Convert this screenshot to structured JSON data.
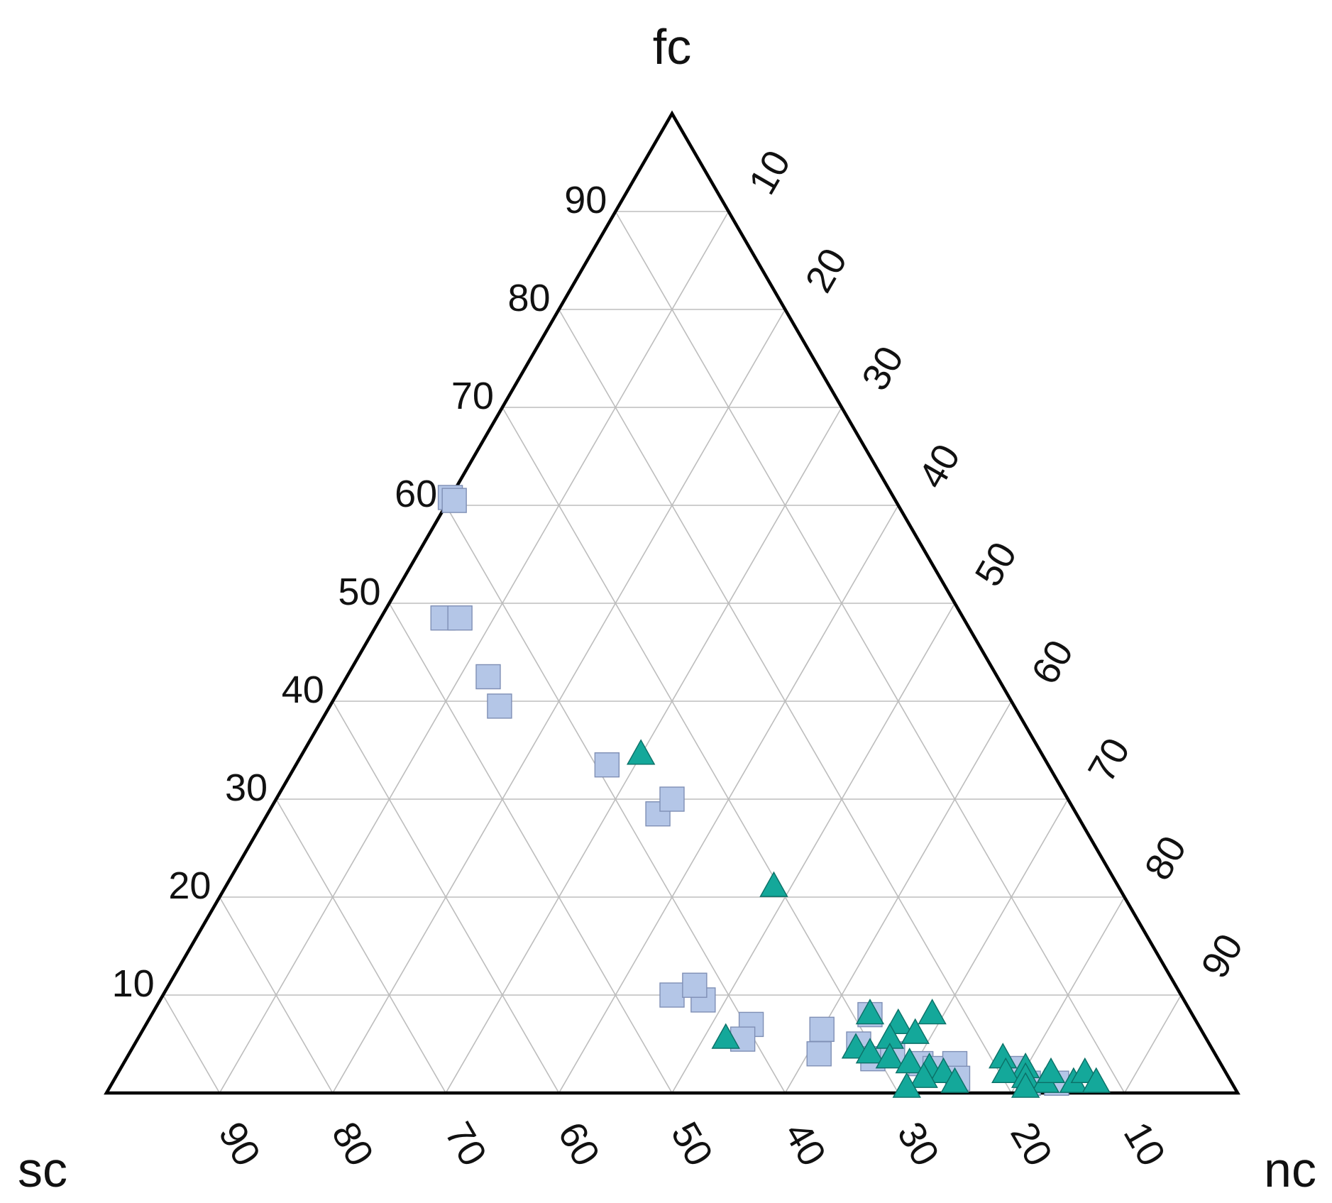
{
  "chart_data": {
    "type": "scatter",
    "subtype": "ternary",
    "title": "",
    "axes": {
      "top": {
        "label": "fc",
        "ticks": [
          "10",
          "20",
          "30",
          "40",
          "50",
          "60",
          "70",
          "80",
          "90"
        ]
      },
      "left": {
        "label": "sc",
        "ticks": [
          "10",
          "20",
          "30",
          "40",
          "50",
          "60",
          "70",
          "80",
          "90"
        ]
      },
      "right": {
        "label": "nc",
        "ticks": [
          "10",
          "20",
          "30",
          "40",
          "50",
          "60",
          "70",
          "80",
          "90"
        ]
      }
    },
    "range": [
      0,
      100
    ],
    "grid": true,
    "grid_step": 10,
    "legend": "none",
    "colors": {
      "squares": "#b4c6e7",
      "square_edge": "#7f8fb5",
      "triangles": "#14a89a",
      "triangle_edge": "#0b6f66",
      "grid": "#bdbdbd",
      "frame": "#000000"
    },
    "series": [
      {
        "marker": "square",
        "color": "#b4c6e7",
        "points": [
          {
            "fc": 60.8,
            "sc": 39.2,
            "nc": 0.0
          },
          {
            "fc": 60.5,
            "sc": 39.0,
            "nc": 0.5
          },
          {
            "fc": 48.5,
            "sc": 46.0,
            "nc": 5.5
          },
          {
            "fc": 48.5,
            "sc": 44.5,
            "nc": 7.0
          },
          {
            "fc": 42.5,
            "sc": 45.0,
            "nc": 12.5
          },
          {
            "fc": 39.5,
            "sc": 45.5,
            "nc": 15.0
          },
          {
            "fc": 33.5,
            "sc": 39.0,
            "nc": 27.5
          },
          {
            "fc": 28.5,
            "sc": 37.0,
            "nc": 34.5
          },
          {
            "fc": 30.0,
            "sc": 35.0,
            "nc": 35.0
          },
          {
            "fc": 10.0,
            "sc": 45.0,
            "nc": 45.0
          },
          {
            "fc": 9.5,
            "sc": 42.5,
            "nc": 48.0
          },
          {
            "fc": 11.0,
            "sc": 42.5,
            "nc": 46.5
          },
          {
            "fc": 7.0,
            "sc": 39.5,
            "nc": 53.5
          },
          {
            "fc": 5.5,
            "sc": 41.0,
            "nc": 53.5
          },
          {
            "fc": 6.5,
            "sc": 33.5,
            "nc": 60.0
          },
          {
            "fc": 4.0,
            "sc": 35.0,
            "nc": 61.0
          },
          {
            "fc": 8.0,
            "sc": 28.5,
            "nc": 63.5
          },
          {
            "fc": 5.0,
            "sc": 31.0,
            "nc": 64.0
          },
          {
            "fc": 3.5,
            "sc": 30.5,
            "nc": 66.0
          },
          {
            "fc": 4.0,
            "sc": 28.5,
            "nc": 67.5
          },
          {
            "fc": 3.0,
            "sc": 26.5,
            "nc": 70.5
          },
          {
            "fc": 2.5,
            "sc": 25.5,
            "nc": 72.0
          },
          {
            "fc": 3.0,
            "sc": 23.5,
            "nc": 73.5
          },
          {
            "fc": 1.5,
            "sc": 24.0,
            "nc": 74.5
          },
          {
            "fc": 2.5,
            "sc": 18.5,
            "nc": 79.0
          },
          {
            "fc": 1.0,
            "sc": 18.0,
            "nc": 81.0
          },
          {
            "fc": 1.0,
            "sc": 15.5,
            "nc": 83.5
          }
        ]
      },
      {
        "marker": "triangle",
        "color": "#14a89a",
        "points": [
          {
            "fc": 34.5,
            "sc": 35.5,
            "nc": 30.0
          },
          {
            "fc": 21.0,
            "sc": 30.5,
            "nc": 48.5
          },
          {
            "fc": 5.5,
            "sc": 42.5,
            "nc": 52.0
          },
          {
            "fc": 8.0,
            "sc": 28.5,
            "nc": 63.5
          },
          {
            "fc": 8.0,
            "sc": 23.0,
            "nc": 69.0
          },
          {
            "fc": 7.0,
            "sc": 26.5,
            "nc": 66.5
          },
          {
            "fc": 6.0,
            "sc": 25.5,
            "nc": 68.5
          },
          {
            "fc": 5.5,
            "sc": 28.0,
            "nc": 66.5
          },
          {
            "fc": 4.5,
            "sc": 31.5,
            "nc": 64.0
          },
          {
            "fc": 4.0,
            "sc": 30.5,
            "nc": 65.5
          },
          {
            "fc": 3.5,
            "sc": 29.0,
            "nc": 67.5
          },
          {
            "fc": 3.0,
            "sc": 27.5,
            "nc": 69.5
          },
          {
            "fc": 2.5,
            "sc": 26.0,
            "nc": 71.5
          },
          {
            "fc": 2.0,
            "sc": 25.0,
            "nc": 73.0
          },
          {
            "fc": 1.5,
            "sc": 27.0,
            "nc": 71.5
          },
          {
            "fc": 1.0,
            "sc": 24.5,
            "nc": 74.5
          },
          {
            "fc": 0.5,
            "sc": 29.0,
            "nc": 70.5
          },
          {
            "fc": 3.5,
            "sc": 19.0,
            "nc": 77.5
          },
          {
            "fc": 2.5,
            "sc": 17.5,
            "nc": 80.0
          },
          {
            "fc": 2.0,
            "sc": 19.5,
            "nc": 78.5
          },
          {
            "fc": 1.5,
            "sc": 18.0,
            "nc": 80.5
          },
          {
            "fc": 1.0,
            "sc": 16.5,
            "nc": 82.5
          },
          {
            "fc": 0.5,
            "sc": 18.5,
            "nc": 81.0
          },
          {
            "fc": 2.0,
            "sc": 15.5,
            "nc": 82.5
          },
          {
            "fc": 1.0,
            "sc": 14.0,
            "nc": 85.0
          },
          {
            "fc": 2.0,
            "sc": 12.5,
            "nc": 85.5
          },
          {
            "fc": 1.0,
            "sc": 12.0,
            "nc": 87.0
          }
        ]
      }
    ]
  }
}
